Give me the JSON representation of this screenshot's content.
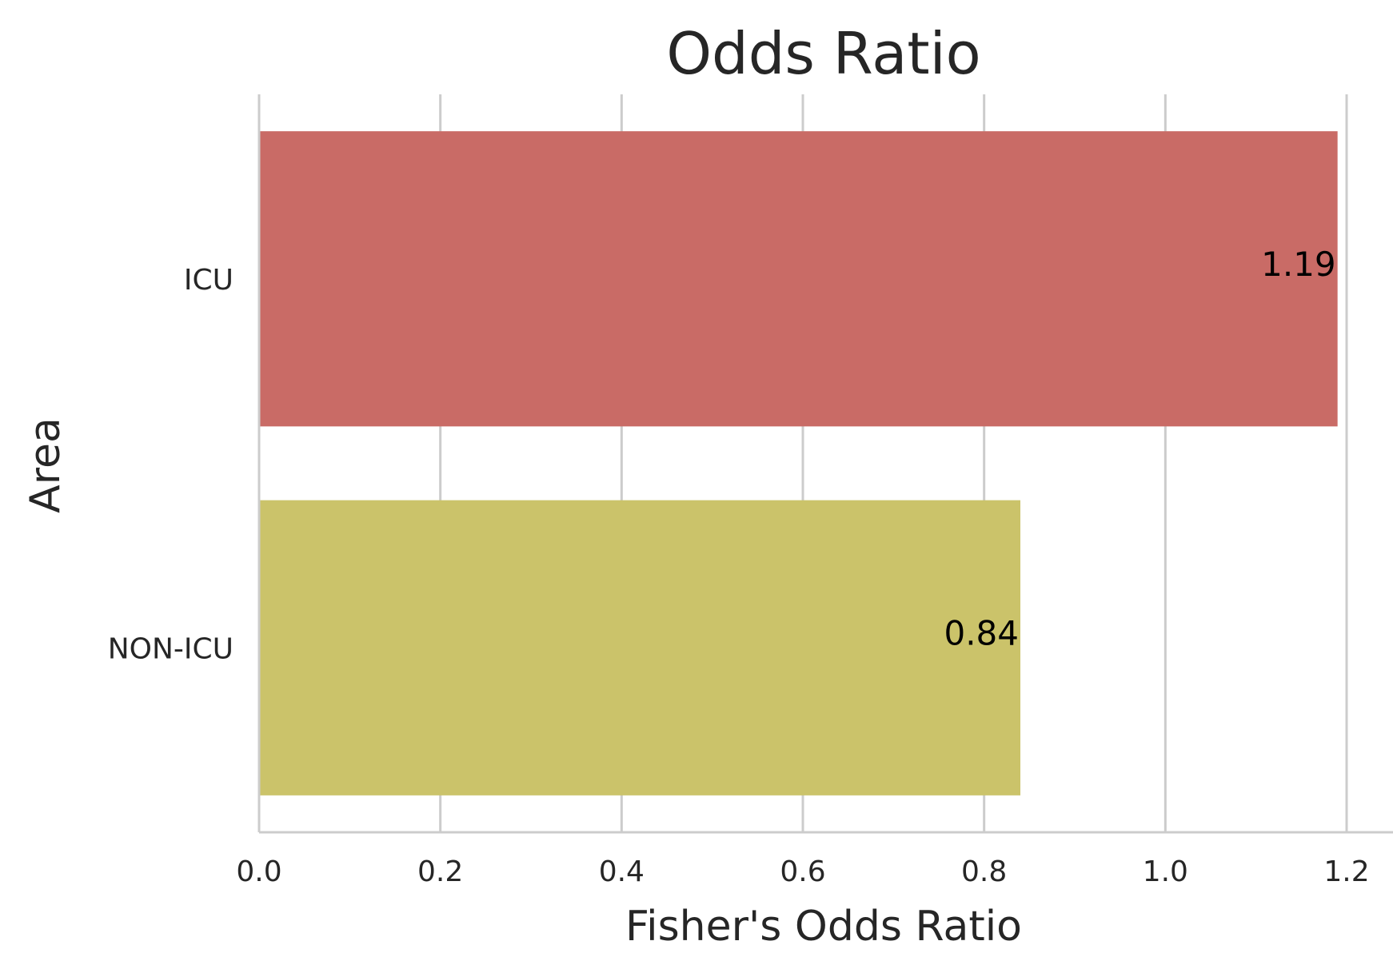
{
  "chart_data": {
    "type": "bar",
    "orientation": "horizontal",
    "title": "Odds Ratio",
    "xlabel": "Fisher's Odds Ratio",
    "ylabel": "Area",
    "xlim": [
      0.0,
      1.25
    ],
    "xticks": [
      0.0,
      0.2,
      0.4,
      0.6,
      0.8,
      1.0,
      1.2
    ],
    "xtick_labels": [
      "0.0",
      "0.2",
      "0.4",
      "0.6",
      "0.8",
      "1.0",
      "1.2"
    ],
    "categories": [
      "ICU",
      "NON-ICU"
    ],
    "values": [
      1.19,
      0.84
    ],
    "data_labels": [
      "1.19",
      "0.84"
    ],
    "colors": [
      "#c96b66",
      "#cbc36a"
    ],
    "grid": "vertical",
    "legend": "none"
  }
}
